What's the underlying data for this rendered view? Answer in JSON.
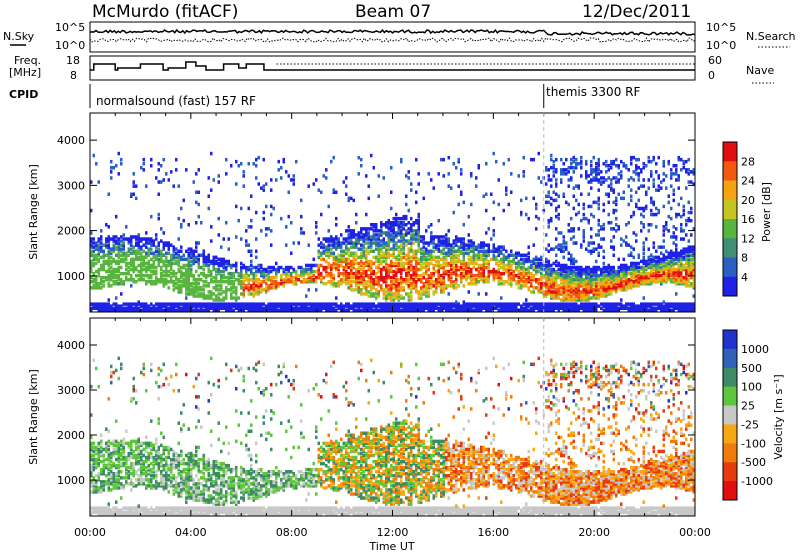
{
  "header": {
    "station": "McMurdo (fitACF)",
    "beam": "Beam 07",
    "date": "12/Dec/2011"
  },
  "noise_panel": {
    "left_label": "N.Sky",
    "right_label": "N.Search",
    "left_ticks": [
      "10^5",
      "10^0"
    ],
    "right_ticks": [
      "10^5",
      "10^0"
    ]
  },
  "freq_panel": {
    "left_label_1": "Freq.",
    "left_label_2": "[MHz]",
    "right_label": "Nave",
    "left_ticks": [
      "18",
      "8"
    ],
    "right_ticks": [
      "60",
      "0"
    ]
  },
  "cpid_panel": {
    "label": "CPID",
    "program_1": "normalsound (fast) 157 RF",
    "program_2": "themis 3300 RF",
    "program_2_start_hours": 18.0
  },
  "chart_data": [
    {
      "type": "heatmap",
      "name": "power",
      "ylabel": "Slant Range [km]",
      "yticks": [
        "1000",
        "2000",
        "3000",
        "4000"
      ],
      "ylim": [
        200,
        4600
      ],
      "xlim_hours": [
        0,
        24
      ],
      "colorbar_label": "Power [dB]",
      "colorbar_ticks": [
        "4",
        "8",
        "12",
        "16",
        "20",
        "24",
        "28"
      ],
      "colorbar_colors": [
        "#1e22e6",
        "#2a5fc4",
        "#3f8f74",
        "#59b540",
        "#c6c41f",
        "#f5a213",
        "#f2590e",
        "#e01010"
      ]
    },
    {
      "type": "heatmap",
      "name": "velocity",
      "ylabel": "Slant Range [km]",
      "yticks": [
        "1000",
        "2000",
        "3000",
        "4000"
      ],
      "ylim": [
        200,
        4600
      ],
      "xlim_hours": [
        0,
        24
      ],
      "colorbar_label": "Velocity [m s⁻¹]",
      "colorbar_ticks": [
        "1000",
        "500",
        "100",
        "25",
        "-25",
        "-100",
        "-500",
        "-1000"
      ],
      "colorbar_colors": [
        "#2033cc",
        "#2f62b8",
        "#3c8a66",
        "#5ec63a",
        "#c8c8c8",
        "#f7a614",
        "#f27c0b",
        "#e53c0d",
        "#e01010"
      ]
    }
  ],
  "time_axis": {
    "label": "Time UT",
    "ticks": [
      "00:00",
      "04:00",
      "08:00",
      "12:00",
      "16:00",
      "20:00",
      "00:00"
    ]
  }
}
